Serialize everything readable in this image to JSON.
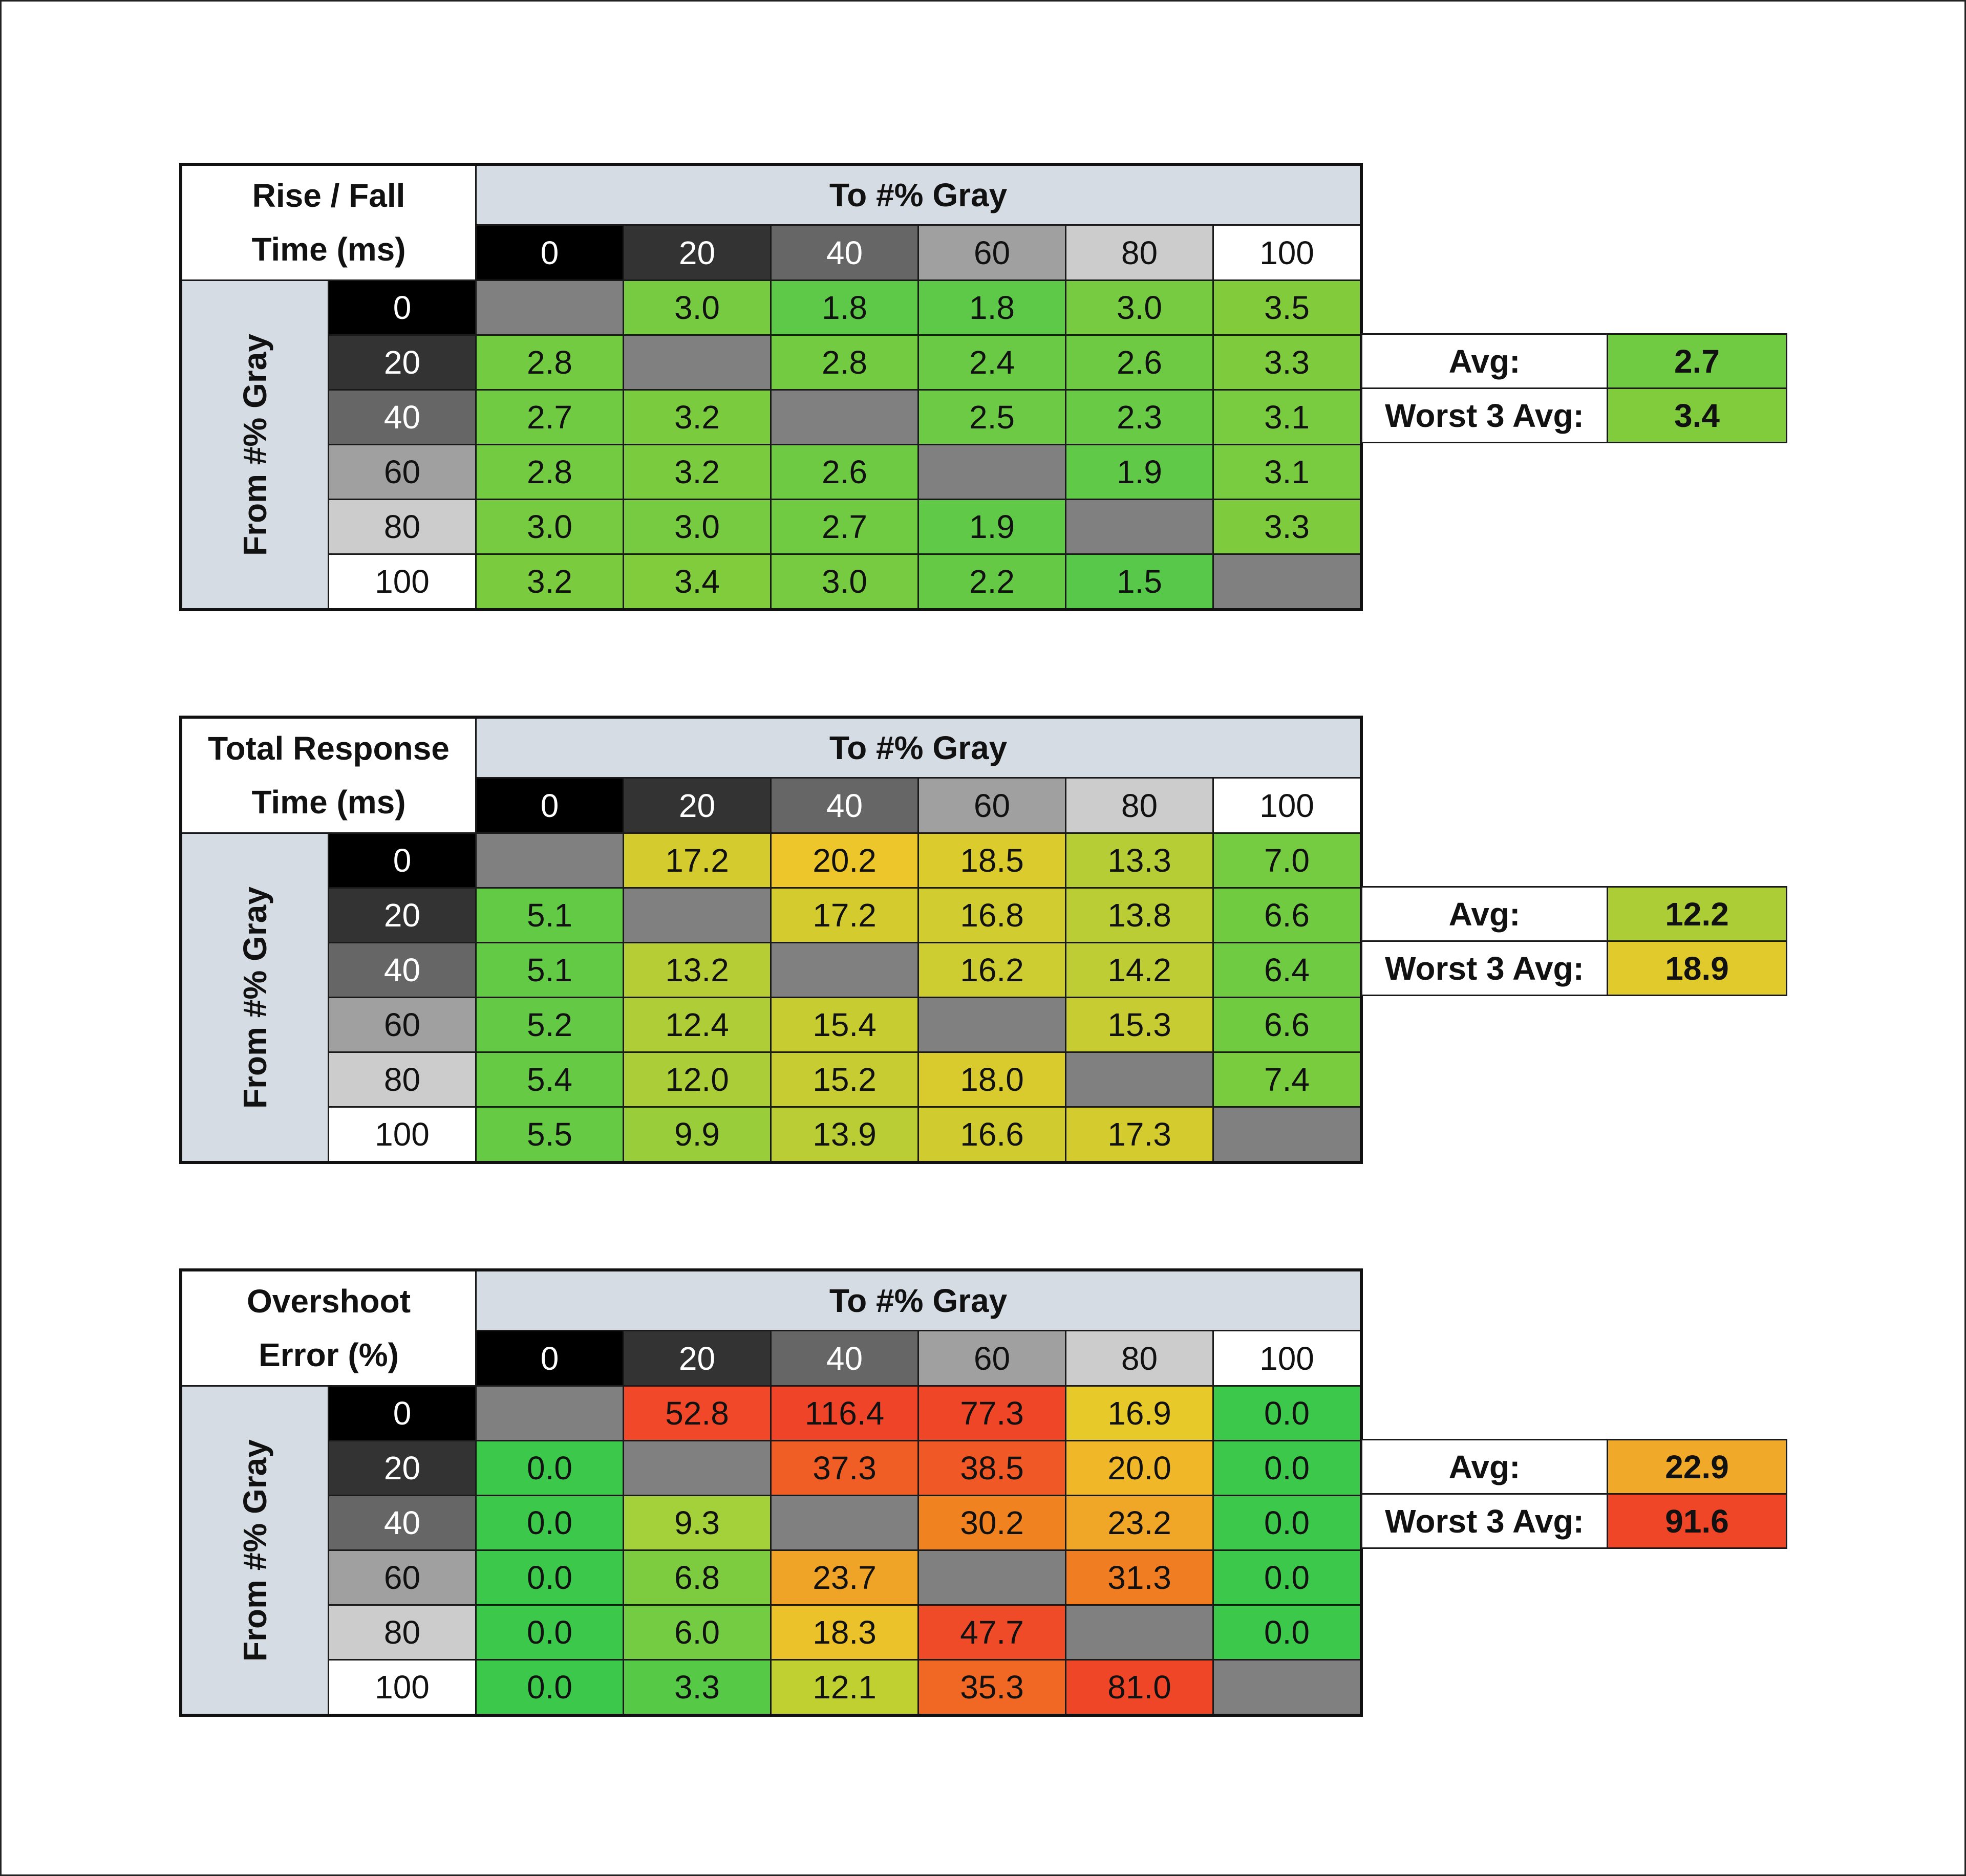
{
  "chart_data": [
    {
      "type": "heatmap",
      "title_lines": [
        "Rise / Fall",
        "Time (ms)"
      ],
      "col_axis_label": "To #% Gray",
      "row_axis_label": "From #% Gray",
      "col_labels": [
        "0",
        "20",
        "40",
        "60",
        "80",
        "100"
      ],
      "row_labels": [
        "0",
        "20",
        "40",
        "60",
        "80",
        "100"
      ],
      "values": [
        [
          null,
          "3.0",
          "1.8",
          "1.8",
          "3.0",
          "3.5"
        ],
        [
          "2.8",
          null,
          "2.8",
          "2.4",
          "2.6",
          "3.3"
        ],
        [
          "2.7",
          "3.2",
          null,
          "2.5",
          "2.3",
          "3.1"
        ],
        [
          "2.8",
          "3.2",
          "2.6",
          null,
          "1.9",
          "3.1"
        ],
        [
          "3.0",
          "3.0",
          "2.7",
          "1.9",
          null,
          "3.3"
        ],
        [
          "3.2",
          "3.4",
          "3.0",
          "2.2",
          "1.5",
          null
        ]
      ],
      "summary": [
        {
          "label": "Avg:",
          "value": "2.7"
        },
        {
          "label": "Worst 3 Avg:",
          "value": "3.4"
        }
      ],
      "color_scale": [
        [
          1.5,
          "#58c84a"
        ],
        [
          2.5,
          "#6cca44"
        ],
        [
          3.5,
          "#82cc3c"
        ]
      ]
    },
    {
      "type": "heatmap",
      "title_lines": [
        "Total Response",
        "Time (ms)"
      ],
      "col_axis_label": "To #% Gray",
      "row_axis_label": "From #% Gray",
      "col_labels": [
        "0",
        "20",
        "40",
        "60",
        "80",
        "100"
      ],
      "row_labels": [
        "0",
        "20",
        "40",
        "60",
        "80",
        "100"
      ],
      "values": [
        [
          null,
          "17.2",
          "20.2",
          "18.5",
          "13.3",
          "7.0"
        ],
        [
          "5.1",
          null,
          "17.2",
          "16.8",
          "13.8",
          "6.6"
        ],
        [
          "5.1",
          "13.2",
          null,
          "16.2",
          "14.2",
          "6.4"
        ],
        [
          "5.2",
          "12.4",
          "15.4",
          null,
          "15.3",
          "6.6"
        ],
        [
          "5.4",
          "12.0",
          "15.2",
          "18.0",
          null,
          "7.4"
        ],
        [
          "5.5",
          "9.9",
          "13.9",
          "16.6",
          "17.3",
          null
        ]
      ],
      "summary": [
        {
          "label": "Avg:",
          "value": "12.2"
        },
        {
          "label": "Worst 3 Avg:",
          "value": "18.9"
        }
      ],
      "color_scale": [
        [
          5,
          "#62ca46"
        ],
        [
          7.5,
          "#7acc3e"
        ],
        [
          10,
          "#9acd3a"
        ],
        [
          13,
          "#b4cd36"
        ],
        [
          16,
          "#cccc30"
        ],
        [
          18.5,
          "#dccb2c"
        ],
        [
          20.2,
          "#ecc62a"
        ]
      ]
    },
    {
      "type": "heatmap",
      "title_lines": [
        "Overshoot",
        "Error (%)"
      ],
      "col_axis_label": "To #% Gray",
      "row_axis_label": "From #% Gray",
      "col_labels": [
        "0",
        "20",
        "40",
        "60",
        "80",
        "100"
      ],
      "row_labels": [
        "0",
        "20",
        "40",
        "60",
        "80",
        "100"
      ],
      "values": [
        [
          null,
          "52.8",
          "116.4",
          "77.3",
          "16.9",
          "0.0"
        ],
        [
          "0.0",
          null,
          "37.3",
          "38.5",
          "20.0",
          "0.0"
        ],
        [
          "0.0",
          "9.3",
          null,
          "30.2",
          "23.2",
          "0.0"
        ],
        [
          "0.0",
          "6.8",
          "23.7",
          null,
          "31.3",
          "0.0"
        ],
        [
          "0.0",
          "6.0",
          "18.3",
          "47.7",
          null,
          "0.0"
        ],
        [
          "0.0",
          "3.3",
          "12.1",
          "35.3",
          "81.0",
          null
        ]
      ],
      "summary": [
        {
          "label": "Avg:",
          "value": "22.9"
        },
        {
          "label": "Worst 3 Avg:",
          "value": "91.6"
        }
      ],
      "color_scale": [
        [
          0,
          "#3cc84a"
        ],
        [
          3.3,
          "#56ca46"
        ],
        [
          6.5,
          "#78cc40"
        ],
        [
          9.3,
          "#a4d03a"
        ],
        [
          12.1,
          "#c0d030"
        ],
        [
          17,
          "#e8ca2a"
        ],
        [
          20,
          "#f0b828"
        ],
        [
          23,
          "#f0a828"
        ],
        [
          30,
          "#f08420"
        ],
        [
          38,
          "#f05a26"
        ],
        [
          50,
          "#f04828"
        ],
        [
          120,
          "#f04428"
        ]
      ]
    }
  ],
  "header_colors": [
    "#000000",
    "#333333",
    "#666666",
    "#a0a0a0",
    "#cccccc",
    "#ffffff"
  ],
  "header_text_colors": [
    "#ffffff",
    "#ffffff",
    "#ffffff",
    "#111111",
    "#111111",
    "#111111"
  ],
  "empty_color": "#808080",
  "label_bg": "#d6dce4"
}
